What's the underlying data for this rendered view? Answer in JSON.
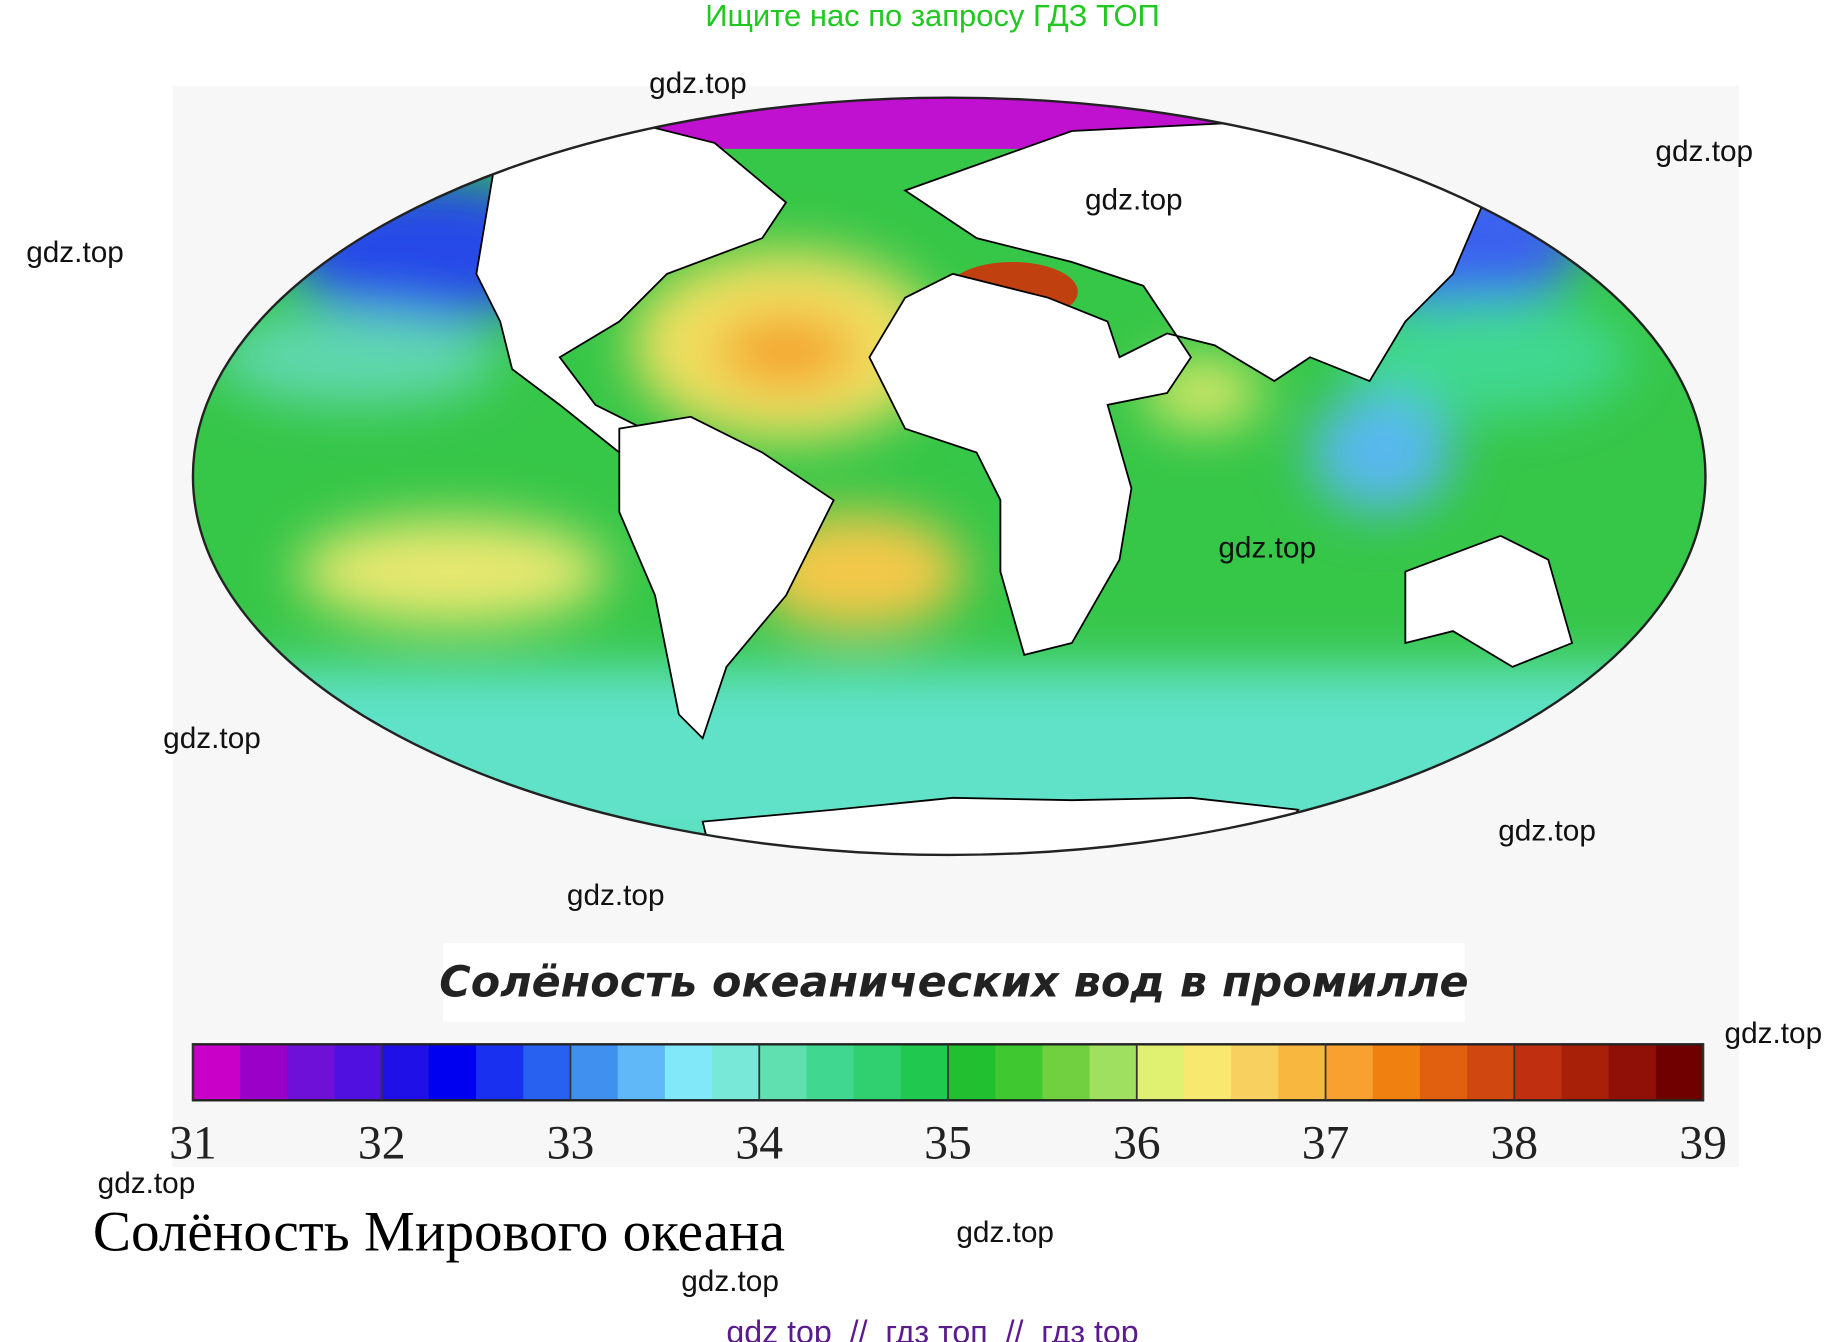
{
  "header": {
    "text": "Ищите нас по запросу ГДЗ ТОП"
  },
  "map": {
    "title": "Солёность океанических вод в промилле"
  },
  "colorbar": {
    "range": [
      31,
      39
    ],
    "ticks": [
      31,
      32,
      33,
      34,
      35,
      36,
      37,
      38,
      39
    ],
    "colors": [
      "#c800c8",
      "#9a00c8",
      "#6e10d8",
      "#5010e0",
      "#2010e8",
      "#0000f0",
      "#1a30f0",
      "#2860f0",
      "#4090f0",
      "#60b8f8",
      "#80e8f8",
      "#78e8d8",
      "#60e0b0",
      "#40d890",
      "#30d070",
      "#20c850",
      "#20c030",
      "#40c830",
      "#70d040",
      "#a0e060",
      "#e0f070",
      "#f8e870",
      "#f8d060",
      "#f8b840",
      "#f8a030",
      "#f08010",
      "#e06010",
      "#d04810",
      "#c03010",
      "#a82008",
      "#901008",
      "#700000"
    ]
  },
  "caption": "Солёность Мирового океана",
  "watermarks": [
    "gdz.top",
    "gdz.top",
    "gdz.top",
    "gdz.top",
    "gdz.top",
    "gdz.top",
    "gdz.top",
    "gdz.top",
    "gdz.top",
    "gdz.top",
    "gdz.top",
    "gdz.top"
  ],
  "footer": "gdz top  //  гдз топ  //  гдз top"
}
